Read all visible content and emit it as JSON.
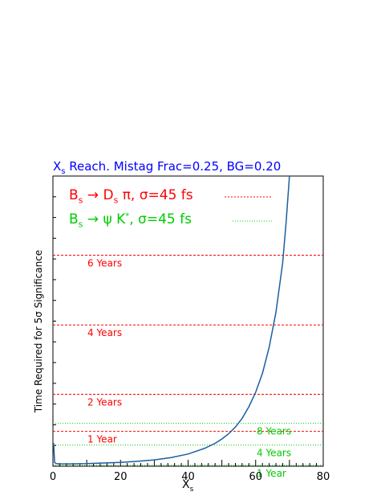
{
  "title_parts": {
    "main": "X",
    "sub": "s",
    "rest": " Reach. Mistag Frac=0.25, BG=0.20"
  },
  "ylabel": "Time Required for 5σ Significance",
  "xlabel_parts": {
    "main": "X",
    "sub": "s"
  },
  "legend": [
    {
      "b": "B",
      "bs": "s",
      "arrow": " → ",
      "d": "D",
      "ds": "s",
      "rest": " π,  σ=45 fs",
      "color": "#ff0000",
      "dash": "2,2"
    },
    {
      "b": "B",
      "bs": "s",
      "arrow": " → ",
      "d": "ψ K",
      "ds": "*",
      "rest": ",  σ=45 fs",
      "color": "#00cc00",
      "dash": "1,2"
    }
  ],
  "colors": {
    "curve": "#1a5fa0",
    "red": "#ff0000",
    "green": "#00cc00",
    "axis": "#000000"
  },
  "chart_data": {
    "type": "line",
    "xlim": [
      0,
      80
    ],
    "xticks": [
      0,
      20,
      40,
      60,
      80
    ],
    "ylim": [
      0,
      100
    ],
    "grid": false,
    "legend_placement": "top-left",
    "series": [
      {
        "x": [
          0.2,
          0.5,
          1,
          2,
          5,
          10,
          15,
          20,
          25,
          30,
          35,
          40,
          45,
          48,
          50,
          52,
          54,
          56,
          58,
          60,
          62,
          64,
          66,
          68,
          69,
          70
        ],
        "y": [
          8,
          1.3,
          0.9,
          0.8,
          0.8,
          0.9,
          1.1,
          1.3,
          1.7,
          2.2,
          3.0,
          4.2,
          6.2,
          7.9,
          9.4,
          11.2,
          13.5,
          16.5,
          20.5,
          25.5,
          32,
          41,
          53,
          70,
          84,
          100
        ]
      }
    ],
    "reference_lines": [
      {
        "label": "6 Years",
        "y": 72.7,
        "color": "red"
      },
      {
        "label": "4 Years",
        "y": 48.7,
        "color": "red"
      },
      {
        "label": "2 Years",
        "y": 24.8,
        "color": "red"
      },
      {
        "label": "1 Year",
        "y": 12.0,
        "color": "red"
      },
      {
        "label": "8 Years",
        "y": 14.8,
        "color": "green"
      },
      {
        "label": "4 Years",
        "y": 7.3,
        "color": "green"
      },
      {
        "label": "1 Year",
        "y": 0.3,
        "color": "green"
      }
    ]
  }
}
